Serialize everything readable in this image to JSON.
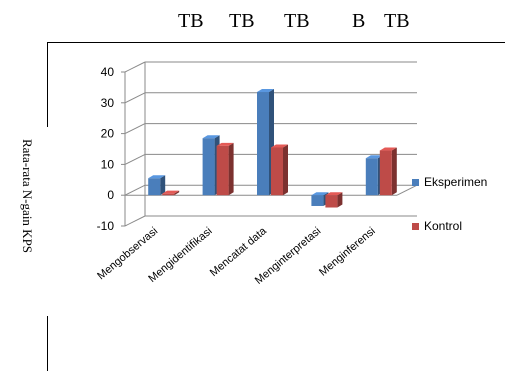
{
  "significance_labels": [
    "TB",
    "TB",
    "TB",
    "B",
    "TB"
  ],
  "chart_data": {
    "type": "bar",
    "title": "",
    "xlabel": "",
    "ylabel": "Rata-rata N-gain KPS",
    "categories": [
      "Mengobservasi",
      "Mengidentifikasi",
      "Mencatat data",
      "Menginterpretasi",
      "Menginferensi"
    ],
    "series": [
      {
        "name": "Eksperimen",
        "values": [
          5.5,
          18.5,
          33.5,
          -3.5,
          12.0
        ]
      },
      {
        "name": "Kontrol",
        "values": [
          0.5,
          16.0,
          15.5,
          -4.0,
          14.5
        ]
      }
    ],
    "ylim": [
      -10,
      40
    ],
    "yticks": [
      -10,
      0,
      10,
      20,
      30,
      40
    ],
    "grid": true,
    "legend": "right",
    "colors": {
      "Eksperimen": "#4a7ebb",
      "Kontrol": "#be4b48"
    }
  }
}
